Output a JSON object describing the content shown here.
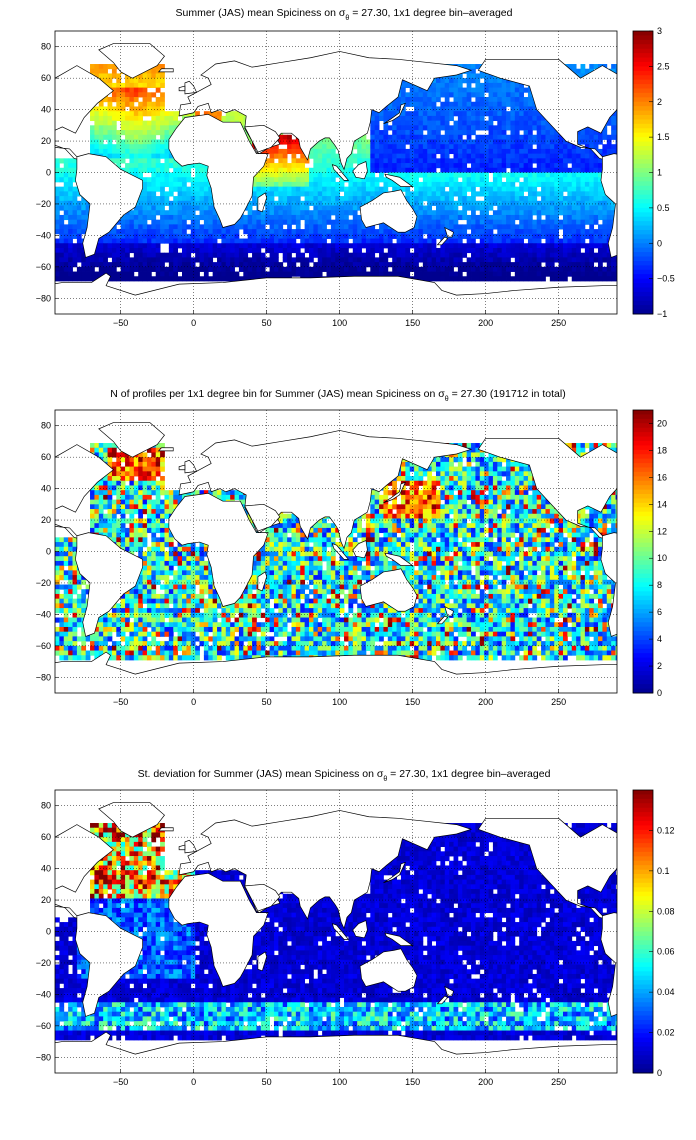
{
  "colors": {
    "jet": [
      "#00008f",
      "#0000ff",
      "#0080ff",
      "#00ffff",
      "#80ff80",
      "#ffff00",
      "#ff8000",
      "#ff0000",
      "#800000"
    ],
    "land": "#ffffff",
    "coast": "#000000"
  },
  "chart_data": [
    {
      "type": "heatmap",
      "title_parts": [
        "Summer (JAS) mean Spiciness on ",
        "σ",
        "θ",
        " = 27.30, 1x1 degree bin–averaged"
      ],
      "xlim": [
        -95,
        290
      ],
      "ylim": [
        -90,
        90
      ],
      "x_ticks": [
        -50,
        0,
        50,
        100,
        150,
        200,
        250
      ],
      "y_ticks": [
        80,
        60,
        40,
        20,
        0,
        -20,
        -40,
        -60,
        -80
      ],
      "x_tick_labels": [
        "−50",
        "0",
        "50",
        "100",
        "150",
        "200",
        "250"
      ],
      "y_tick_labels": [
        "80",
        "60",
        "40",
        "20",
        "0",
        "−20",
        "−40",
        "−60",
        "−80"
      ],
      "grid": "dotted",
      "colorbar": {
        "min": -1,
        "max": 3,
        "ticks": [
          3,
          2.5,
          2,
          1.5,
          1,
          0.5,
          0,
          -0.5,
          -1
        ],
        "tick_labels": [
          "3",
          "2.5",
          "2",
          "1.5",
          "1",
          "0.5",
          "0",
          "−0.5",
          "−1"
        ]
      }
    },
    {
      "type": "heatmap",
      "title_parts": [
        "N of profiles per 1x1 degree bin for Summer (JAS) mean Spiciness on ",
        "σ",
        "θ",
        " = 27.30 (191712 in total)"
      ],
      "xlim": [
        -95,
        290
      ],
      "ylim": [
        -90,
        90
      ],
      "x_ticks": [
        -50,
        0,
        50,
        100,
        150,
        200,
        250
      ],
      "y_ticks": [
        80,
        60,
        40,
        20,
        0,
        -20,
        -40,
        -60,
        -80
      ],
      "x_tick_labels": [
        "−50",
        "0",
        "50",
        "100",
        "150",
        "200",
        "250"
      ],
      "y_tick_labels": [
        "80",
        "60",
        "40",
        "20",
        "0",
        "−20",
        "−40",
        "−60",
        "−80"
      ],
      "grid": "dotted",
      "colorbar": {
        "min": 0,
        "max": 21,
        "ticks": [
          20,
          18,
          16,
          14,
          12,
          10,
          8,
          6,
          4,
          2,
          0
        ],
        "tick_labels": [
          "20",
          "18",
          "16",
          "14",
          "12",
          "10",
          "8",
          "6",
          "4",
          "2",
          "0"
        ]
      }
    },
    {
      "type": "heatmap",
      "title_parts": [
        "St. deviation for Summer (JAS) mean Spiciness on ",
        "σ",
        "θ",
        " = 27.30, 1x1 degree bin–averaged"
      ],
      "xlim": [
        -95,
        290
      ],
      "ylim": [
        -90,
        90
      ],
      "x_ticks": [
        -50,
        0,
        50,
        100,
        150,
        200,
        250
      ],
      "y_ticks": [
        80,
        60,
        40,
        20,
        0,
        -20,
        -40,
        -60,
        -80
      ],
      "x_tick_labels": [
        "−50",
        "0",
        "50",
        "100",
        "150",
        "200",
        "250"
      ],
      "y_tick_labels": [
        "80",
        "60",
        "40",
        "20",
        "0",
        "−20",
        "−40",
        "−60",
        "−80"
      ],
      "grid": "dotted",
      "colorbar": {
        "min": 0,
        "max": 0.14,
        "ticks": [
          0.12,
          0.1,
          0.08,
          0.06,
          0.04,
          0.02,
          0
        ],
        "tick_labels": [
          "0.12",
          "0.1",
          "0.08",
          "0.06",
          "0.04",
          "0.02",
          "0"
        ]
      }
    }
  ]
}
